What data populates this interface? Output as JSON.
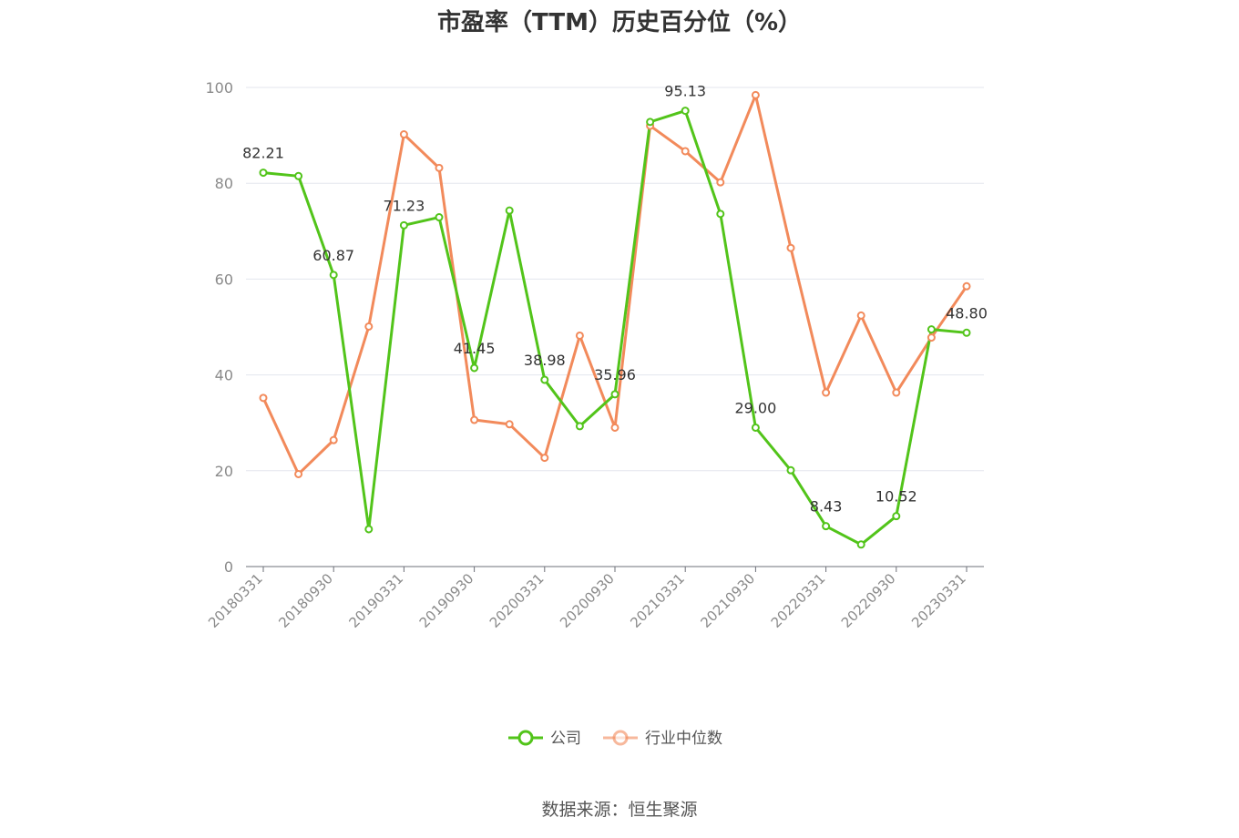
{
  "title": "市盈率（TTM）历史百分位（%）",
  "source": "数据来源：恒生聚源",
  "chart_data": {
    "type": "line",
    "title": "市盈率（TTM）历史百分位（%）",
    "xlabel": "",
    "ylabel": "",
    "ylim": [
      0,
      100
    ],
    "yticks": [
      0,
      20,
      40,
      60,
      80,
      100
    ],
    "grid": true,
    "legend": "bottom-center",
    "x": [
      "20180331",
      "20180630",
      "20180930",
      "20181231",
      "20190331",
      "20190630",
      "20190930",
      "20191231",
      "20200331",
      "20200630",
      "20200930",
      "20201231",
      "20210331",
      "20210630",
      "20210930",
      "20211231",
      "20220331",
      "20220630",
      "20220930",
      "20221231",
      "20230331"
    ],
    "xtick_labels": [
      "20180331",
      "20180930",
      "20190331",
      "20190930",
      "20200331",
      "20200930",
      "20210331",
      "20210930",
      "20220331",
      "20220930",
      "20230331"
    ],
    "series": [
      {
        "name": "公司",
        "color": "#52c41a",
        "values": [
          82.21,
          81.5,
          60.87,
          7.8,
          71.23,
          72.9,
          41.45,
          74.3,
          38.98,
          29.3,
          35.96,
          92.8,
          95.13,
          73.6,
          29.0,
          20.1,
          8.43,
          4.6,
          10.52,
          49.5,
          48.8
        ],
        "labels": {
          "0": "82.21",
          "2": "60.87",
          "4": "71.23",
          "6": "41.45",
          "8": "38.98",
          "10": "35.96",
          "12": "95.13",
          "14": "29.00",
          "16": "8.43",
          "18": "10.52",
          "20": "48.80"
        }
      },
      {
        "name": "行业中位数",
        "color": "#f28a5b",
        "values": [
          35.2,
          19.3,
          26.4,
          50.1,
          90.2,
          83.2,
          30.6,
          29.7,
          22.7,
          48.2,
          29.0,
          92.0,
          86.7,
          80.2,
          98.4,
          66.5,
          36.3,
          52.4,
          36.3,
          47.8,
          58.5
        ]
      }
    ]
  }
}
